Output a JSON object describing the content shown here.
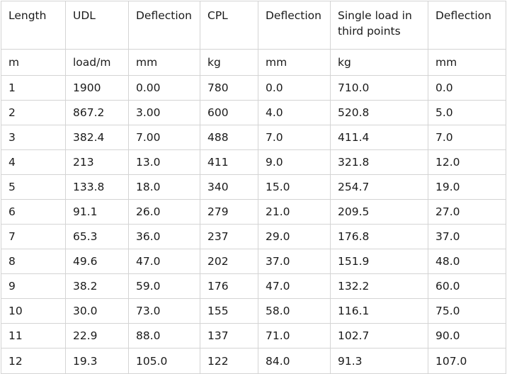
{
  "table": {
    "headers": [
      "Length",
      "UDL",
      "Deflection",
      "CPL",
      "Deflection",
      "Single load in third points",
      "Deflection"
    ],
    "units": [
      "m",
      "load/m",
      "mm",
      "kg",
      "mm",
      "kg",
      "mm"
    ],
    "rows": [
      [
        "1",
        "1900",
        "0.00",
        "780",
        "0.0",
        "710.0",
        "0.0"
      ],
      [
        "2",
        "867.2",
        "3.00",
        "600",
        "4.0",
        "520.8",
        "5.0"
      ],
      [
        "3",
        "382.4",
        "7.00",
        "488",
        "7.0",
        "411.4",
        "7.0"
      ],
      [
        "4",
        "213",
        "13.0",
        "411",
        "9.0",
        "321.8",
        "12.0"
      ],
      [
        "5",
        "133.8",
        "18.0",
        "340",
        "15.0",
        "254.7",
        "19.0"
      ],
      [
        "6",
        "91.1",
        "26.0",
        "279",
        "21.0",
        "209.5",
        "27.0"
      ],
      [
        "7",
        "65.3",
        "36.0",
        "237",
        "29.0",
        "176.8",
        "37.0"
      ],
      [
        "8",
        "49.6",
        "47.0",
        "202",
        "37.0",
        "151.9",
        "48.0"
      ],
      [
        "9",
        "38.2",
        "59.0",
        "176",
        "47.0",
        "132.2",
        "60.0"
      ],
      [
        "10",
        "30.0",
        "73.0",
        "155",
        "58.0",
        "116.1",
        "75.0"
      ],
      [
        "11",
        "22.9",
        "88.0",
        "137",
        "71.0",
        "102.7",
        "90.0"
      ],
      [
        "12",
        "19.3",
        "105.0",
        "122",
        "84.0",
        "91.3",
        "107.0"
      ]
    ]
  }
}
